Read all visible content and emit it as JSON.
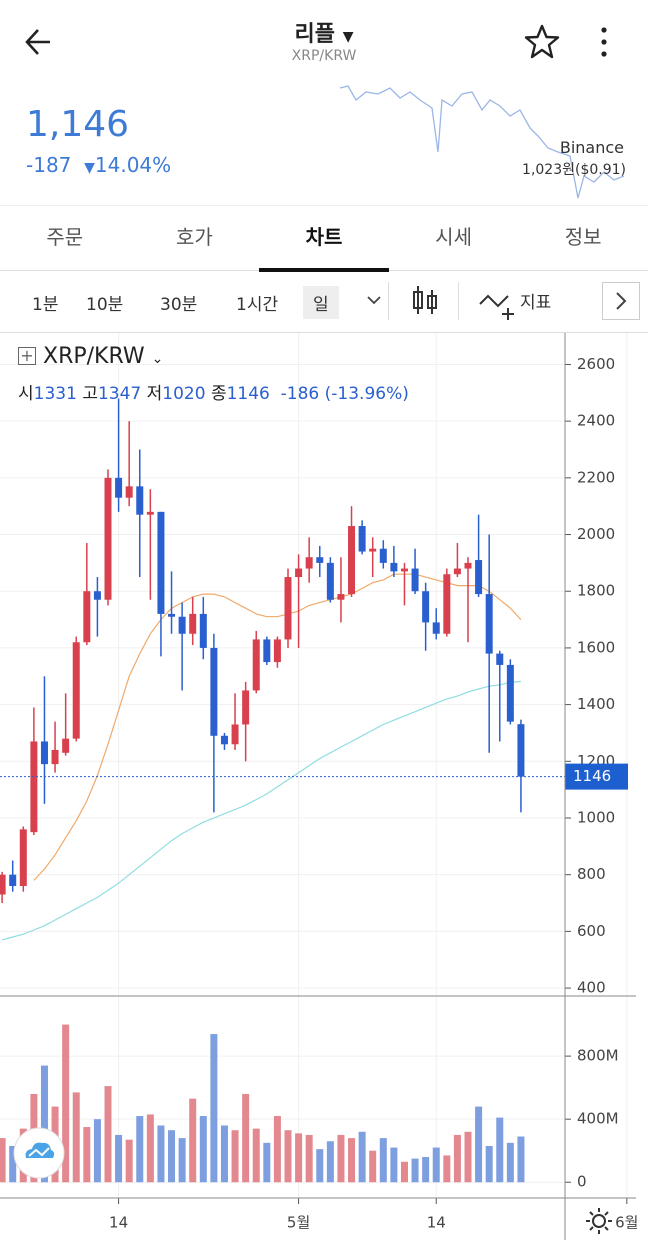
{
  "header": {
    "title": "리플",
    "subtitle": "XRP/KRW"
  },
  "price": {
    "last": "1,146",
    "change": "-187",
    "change_pct": "14.04%",
    "exchange": "Binance",
    "exchange_price": "1,023원($0.91)"
  },
  "tabs": [
    "주문",
    "호가",
    "차트",
    "시세",
    "정보"
  ],
  "active_tab": 2,
  "intervals": [
    "1분",
    "10분",
    "30분",
    "1시간",
    "일"
  ],
  "active_interval": 4,
  "indicator": "지표",
  "legend": {
    "symbol": "XRP/KRW",
    "open_label": "시",
    "high_label": "고",
    "low_label": "저",
    "close_label": "종",
    "change": "-186 (-13.96%)"
  },
  "chart_data": {
    "type": "candlestick",
    "up_color": "#d8404e",
    "down_color": "#2a5fcf",
    "volume_up_color": "#e3888f",
    "volume_down_color": "#7d9fe0",
    "open": [
      730,
      800,
      760,
      950,
      1270,
      1190,
      1230,
      1280,
      1620,
      1800,
      1770,
      2200,
      2130,
      2170,
      2070,
      2080,
      1720,
      1710,
      1650,
      1720,
      1600,
      1290,
      1260,
      1330,
      1450,
      1630,
      1550,
      1630,
      1850,
      1880,
      1920,
      1900,
      1770,
      1790,
      2030,
      1940,
      1950,
      1900,
      1870,
      1880,
      1800,
      1690,
      1650,
      1860,
      1880,
      1910,
      1790,
      1580,
      1540,
      1331
    ],
    "high": [
      810,
      850,
      970,
      1390,
      1500,
      1340,
      1440,
      1640,
      1970,
      1850,
      2230,
      2480,
      2400,
      2300,
      2160,
      2080,
      1870,
      1760,
      1780,
      1780,
      1650,
      1300,
      1440,
      1480,
      1660,
      1640,
      1640,
      1880,
      1930,
      1990,
      1960,
      1920,
      1920,
      2100,
      2050,
      1990,
      1980,
      1960,
      1900,
      1950,
      1830,
      1740,
      1880,
      1970,
      1920,
      2070,
      2000,
      1590,
      1560,
      1347
    ],
    "low": [
      700,
      740,
      740,
      940,
      1050,
      1160,
      1220,
      1270,
      1610,
      1640,
      1750,
      2080,
      2100,
      1850,
      1770,
      1570,
      1650,
      1450,
      1610,
      1560,
      1020,
      1240,
      1240,
      1200,
      1440,
      1540,
      1530,
      1600,
      1600,
      1830,
      1850,
      1760,
      1690,
      1780,
      1930,
      1850,
      1880,
      1850,
      1750,
      1790,
      1590,
      1630,
      1640,
      1850,
      1620,
      1780,
      1230,
      1270,
      1330,
      1020
    ],
    "close": [
      800,
      760,
      960,
      1270,
      1190,
      1240,
      1280,
      1620,
      1800,
      1770,
      2200,
      2130,
      2170,
      2070,
      2080,
      1720,
      1710,
      1650,
      1720,
      1600,
      1290,
      1260,
      1330,
      1450,
      1630,
      1550,
      1630,
      1850,
      1880,
      1920,
      1900,
      1770,
      1790,
      2030,
      1940,
      1950,
      1900,
      1870,
      1880,
      1800,
      1690,
      1650,
      1860,
      1880,
      1900,
      1790,
      1580,
      1540,
      1340,
      1146
    ],
    "volume": [
      280000000,
      230000000,
      340000000,
      560000000,
      740000000,
      480000000,
      1000000000,
      570000000,
      350000000,
      400000000,
      610000000,
      300000000,
      270000000,
      420000000,
      430000000,
      360000000,
      330000000,
      280000000,
      530000000,
      420000000,
      940000000,
      360000000,
      330000000,
      560000000,
      340000000,
      250000000,
      420000000,
      330000000,
      310000000,
      300000000,
      210000000,
      260000000,
      300000000,
      280000000,
      320000000,
      200000000,
      280000000,
      220000000,
      130000000,
      150000000,
      160000000,
      220000000,
      170000000,
      300000000,
      320000000,
      480000000,
      230000000,
      410000000,
      250000000,
      290000000
    ],
    "series": [
      {
        "color": "#f0a868",
        "values": [
          null,
          null,
          null,
          780,
          820,
          870,
          930,
          990,
          1060,
          1150,
          1260,
          1380,
          1500,
          1580,
          1650,
          1700,
          1740,
          1760,
          1780,
          1790,
          1790,
          1780,
          1760,
          1740,
          1720,
          1710,
          1710,
          1720,
          1730,
          1750,
          1760,
          1770,
          1780,
          1790,
          1810,
          1830,
          1840,
          1860,
          1860,
          1860,
          1850,
          1840,
          1830,
          1820,
          1820,
          1820,
          1800,
          1770,
          1740,
          1700
        ]
      },
      {
        "color": "#8fdde0",
        "values": [
          570,
          580,
          590,
          605,
          620,
          640,
          660,
          680,
          700,
          720,
          745,
          770,
          800,
          830,
          860,
          890,
          920,
          945,
          965,
          985,
          1000,
          1015,
          1030,
          1045,
          1065,
          1085,
          1110,
          1135,
          1160,
          1185,
          1210,
          1230,
          1250,
          1270,
          1290,
          1310,
          1330,
          1345,
          1360,
          1375,
          1390,
          1405,
          1420,
          1430,
          1445,
          1455,
          1465,
          1470,
          1478,
          1482
        ]
      }
    ],
    "ylim": [
      372,
      2711
    ],
    "yticks": [
      400,
      600,
      800,
      1000,
      1200,
      1400,
      1600,
      1800,
      2000,
      2200,
      2400,
      2600
    ],
    "volume_ylim": [
      -100000000,
      1175000000
    ],
    "volume_ticks": [
      0,
      {
        "value": 400000000,
        "label": "400M"
      },
      {
        "value": 800000000,
        "label": "800M"
      }
    ],
    "xlim": [
      -0.2,
      61
    ],
    "xticks": [
      {
        "value": 11,
        "label": "14"
      },
      {
        "value": 28,
        "label": "5월"
      },
      {
        "value": 41,
        "label": "14"
      },
      {
        "value": 59,
        "label": "6월"
      }
    ],
    "grid": true
  }
}
